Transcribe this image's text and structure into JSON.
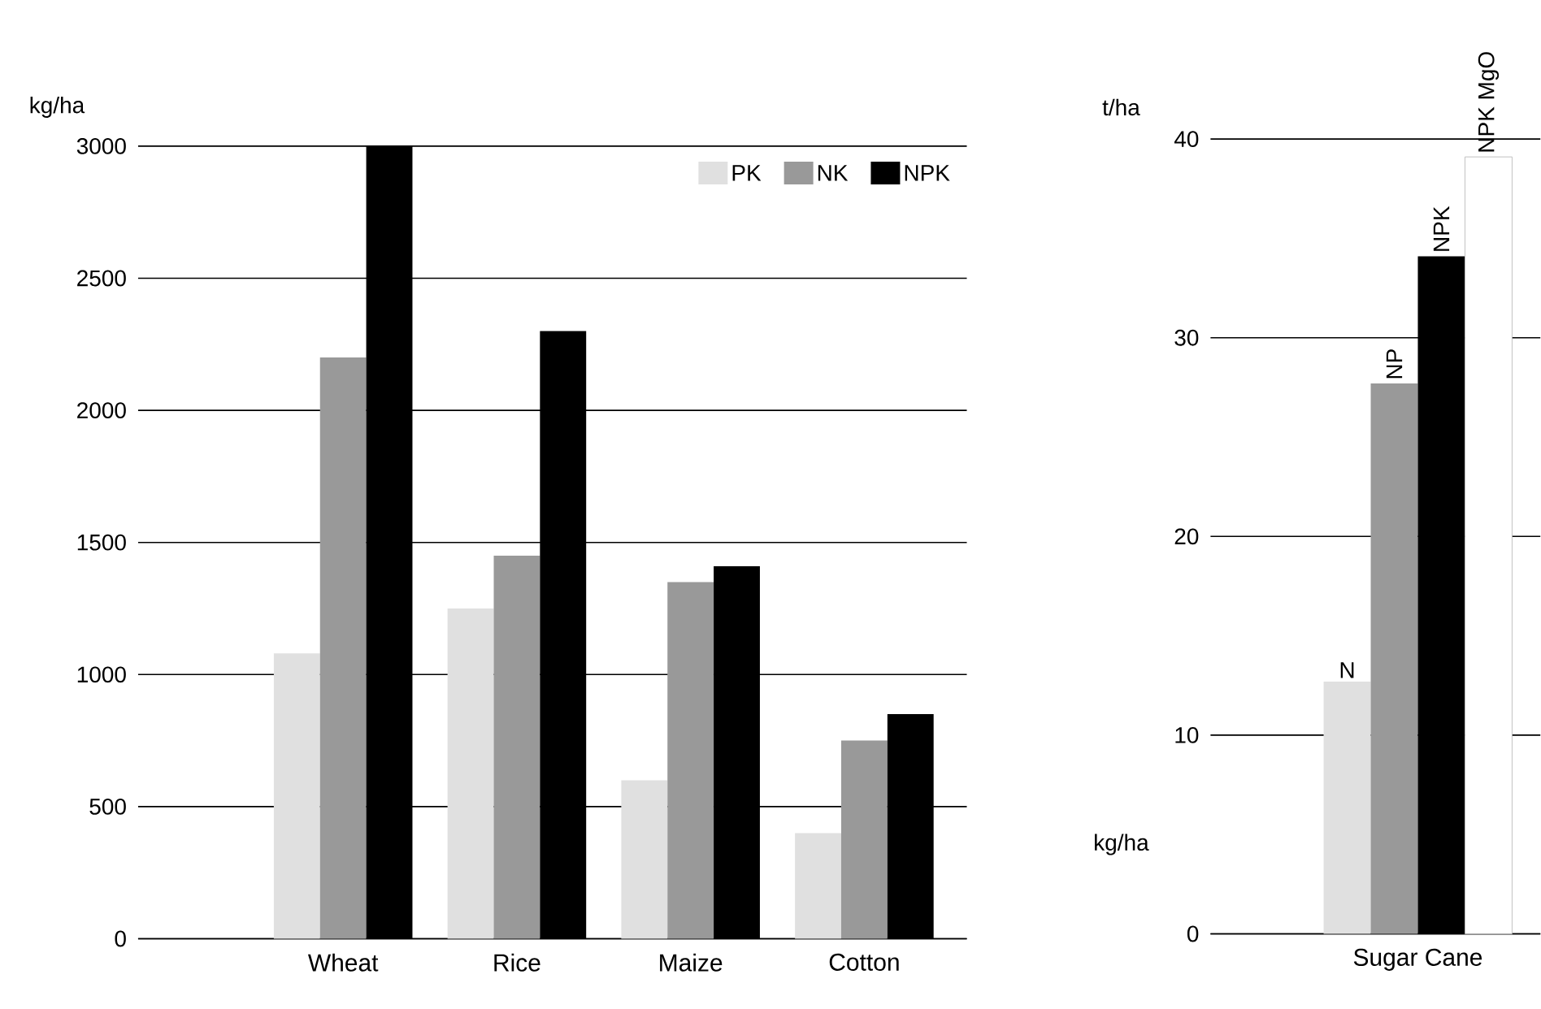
{
  "chart_data": [
    {
      "type": "bar",
      "ylabel": "kg/ha",
      "categories": [
        "Wheat",
        "Rice",
        "Maize",
        "Cotton"
      ],
      "series": [
        {
          "name": "PK",
          "color": "#e0e0e0",
          "values": [
            1080,
            1250,
            600,
            400
          ]
        },
        {
          "name": "NK",
          "color": "#999999",
          "values": [
            2200,
            1450,
            1350,
            750
          ]
        },
        {
          "name": "NPK",
          "color": "#000000",
          "values": [
            3000,
            2300,
            1410,
            850
          ]
        }
      ],
      "ylim": [
        0,
        3000
      ],
      "yticks": [
        0,
        500,
        1000,
        1500,
        2000,
        2500,
        3000
      ],
      "grid": "y",
      "legend": "top right"
    },
    {
      "type": "bar",
      "ylabel": "t/ha",
      "categories": [
        "Sugar Cane"
      ],
      "series": [
        {
          "name": "N",
          "color": "#e0e0e0",
          "values": [
            12.7
          ]
        },
        {
          "name": "NP",
          "color": "#999999",
          "values": [
            27.7
          ]
        },
        {
          "name": "NPK",
          "color": "#000000",
          "values": [
            34.1
          ]
        },
        {
          "name": "NPK MgO",
          "color": "#ffffff",
          "values": [
            39.1
          ]
        }
      ],
      "ylim": [
        0,
        40
      ],
      "yticks": [
        0,
        10,
        20,
        30,
        40
      ],
      "grid": "y",
      "legend": false,
      "annotations": [
        "kg/ha"
      ]
    }
  ]
}
